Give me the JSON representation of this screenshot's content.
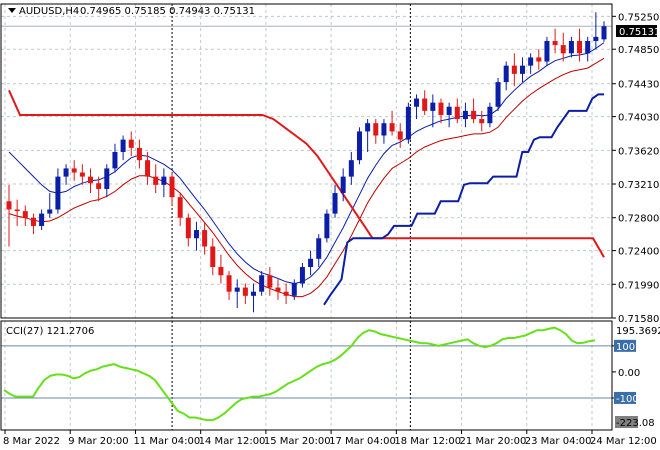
{
  "header": {
    "symbol": "AUDUSD,H4",
    "ohlc": "0.74965 0.75185 0.74943 0.75131",
    "cci_label": "CCI(27) 121.2706"
  },
  "price_tag": "0.75131",
  "cci_tags": {
    "top": "195.3692",
    "bottom": "-223.08"
  },
  "colors": {
    "bull": "#0a1ea8",
    "bear": "#e01818",
    "line_dark": "#0a1ea8",
    "line_red": "#c00000",
    "cci": "#66e01a",
    "grid": "#c0c8d0",
    "frame": "#000000"
  },
  "chart_data": [
    {
      "type": "candlestick",
      "title": "AUDUSD,H4",
      "ylim": [
        0.7158,
        0.754
      ],
      "y_ticks": [
        "0.75250",
        "0.74850",
        "0.74430",
        "0.74030",
        "0.73620",
        "0.73210",
        "0.72800",
        "0.72400",
        "0.71990",
        "0.71580"
      ],
      "x_ticks": [
        "8 Mar 2022",
        "9 Mar 20:00",
        "11 Mar 04:00",
        "14 Mar 12:00",
        "15 Mar 20:00",
        "17 Mar 04:00",
        "18 Mar 12:00",
        "21 Mar 20:00",
        "23 Mar 04:00",
        "24 Mar 12:00"
      ],
      "candles": [
        [
          0.73,
          0.732,
          0.7245,
          0.729
        ],
        [
          0.729,
          0.7302,
          0.727,
          0.7288
        ],
        [
          0.7288,
          0.7295,
          0.727,
          0.728
        ],
        [
          0.728,
          0.7285,
          0.726,
          0.727
        ],
        [
          0.727,
          0.729,
          0.7265,
          0.7285
        ],
        [
          0.7285,
          0.731,
          0.728,
          0.729
        ],
        [
          0.729,
          0.734,
          0.7285,
          0.733
        ],
        [
          0.733,
          0.7345,
          0.732,
          0.734
        ],
        [
          0.734,
          0.735,
          0.7325,
          0.7335
        ],
        [
          0.7335,
          0.7345,
          0.732,
          0.733
        ],
        [
          0.733,
          0.734,
          0.731,
          0.7322
        ],
        [
          0.7322,
          0.733,
          0.73,
          0.7315
        ],
        [
          0.7315,
          0.7345,
          0.7305,
          0.734
        ],
        [
          0.734,
          0.737,
          0.7335,
          0.736
        ],
        [
          0.736,
          0.738,
          0.735,
          0.7375
        ],
        [
          0.7375,
          0.7385,
          0.7355,
          0.7365
        ],
        [
          0.7365,
          0.7375,
          0.734,
          0.735
        ],
        [
          0.735,
          0.736,
          0.732,
          0.733
        ],
        [
          0.733,
          0.7345,
          0.731,
          0.732
        ],
        [
          0.732,
          0.734,
          0.7305,
          0.733
        ],
        [
          0.733,
          0.7335,
          0.7295,
          0.7305
        ],
        [
          0.7305,
          0.731,
          0.727,
          0.728
        ],
        [
          0.728,
          0.7285,
          0.7245,
          0.7255
        ],
        [
          0.7255,
          0.7275,
          0.724,
          0.7265
        ],
        [
          0.7265,
          0.7275,
          0.7235,
          0.7245
        ],
        [
          0.7245,
          0.7255,
          0.721,
          0.722
        ],
        [
          0.722,
          0.7235,
          0.72,
          0.721
        ],
        [
          0.721,
          0.7215,
          0.718,
          0.719
        ],
        [
          0.719,
          0.7205,
          0.717,
          0.7195
        ],
        [
          0.7195,
          0.72,
          0.7175,
          0.7185
        ],
        [
          0.7185,
          0.72,
          0.7165,
          0.719
        ],
        [
          0.719,
          0.7215,
          0.7185,
          0.721
        ],
        [
          0.721,
          0.722,
          0.7185,
          0.7195
        ],
        [
          0.7195,
          0.7205,
          0.718,
          0.719
        ],
        [
          0.719,
          0.72,
          0.7175,
          0.7185
        ],
        [
          0.7185,
          0.7205,
          0.718,
          0.72
        ],
        [
          0.72,
          0.7225,
          0.7195,
          0.722
        ],
        [
          0.722,
          0.724,
          0.721,
          0.723
        ],
        [
          0.723,
          0.726,
          0.722,
          0.7255
        ],
        [
          0.7255,
          0.729,
          0.725,
          0.7285
        ],
        [
          0.7285,
          0.732,
          0.728,
          0.731
        ],
        [
          0.731,
          0.734,
          0.73,
          0.733
        ],
        [
          0.733,
          0.736,
          0.732,
          0.735
        ],
        [
          0.735,
          0.739,
          0.7345,
          0.7385
        ],
        [
          0.7385,
          0.74,
          0.736,
          0.7395
        ],
        [
          0.7395,
          0.74,
          0.737,
          0.738
        ],
        [
          0.738,
          0.74,
          0.737,
          0.7395
        ],
        [
          0.7395,
          0.741,
          0.738,
          0.7385
        ],
        [
          0.7385,
          0.7395,
          0.7365,
          0.7375
        ],
        [
          0.7375,
          0.742,
          0.737,
          0.7415
        ],
        [
          0.7415,
          0.743,
          0.74,
          0.7425
        ],
        [
          0.7425,
          0.7435,
          0.7405,
          0.741
        ],
        [
          0.741,
          0.743,
          0.739,
          0.742
        ],
        [
          0.742,
          0.7425,
          0.7395,
          0.7405
        ],
        [
          0.7405,
          0.742,
          0.739,
          0.7415
        ],
        [
          0.7415,
          0.7425,
          0.7395,
          0.74
        ],
        [
          0.74,
          0.742,
          0.739,
          0.741
        ],
        [
          0.741,
          0.7425,
          0.7395,
          0.74
        ],
        [
          0.74,
          0.741,
          0.7385,
          0.7395
        ],
        [
          0.7395,
          0.742,
          0.739,
          0.7415
        ],
        [
          0.7415,
          0.745,
          0.741,
          0.7445
        ],
        [
          0.7445,
          0.747,
          0.7435,
          0.7465
        ],
        [
          0.7465,
          0.748,
          0.744,
          0.7455
        ],
        [
          0.7455,
          0.7475,
          0.7445,
          0.7465
        ],
        [
          0.7465,
          0.748,
          0.7455,
          0.7475
        ],
        [
          0.7475,
          0.7485,
          0.746,
          0.747
        ],
        [
          0.747,
          0.75,
          0.7465,
          0.7495
        ],
        [
          0.7495,
          0.751,
          0.748,
          0.749
        ],
        [
          0.749,
          0.7505,
          0.747,
          0.748
        ],
        [
          0.748,
          0.75,
          0.7475,
          0.7495
        ],
        [
          0.7495,
          0.751,
          0.747,
          0.748
        ],
        [
          0.748,
          0.75,
          0.747,
          0.7495
        ],
        [
          0.7495,
          0.753,
          0.7485,
          0.75
        ],
        [
          0.7497,
          0.7519,
          0.7494,
          0.7513
        ]
      ],
      "series": [
        {
          "values": [
            0.736,
            0.735,
            0.734,
            0.733,
            0.732,
            0.7312,
            0.731,
            0.7312,
            0.7318,
            0.7322,
            0.7325,
            0.7326,
            0.733,
            0.7336,
            0.7345,
            0.7353,
            0.7356,
            0.7355,
            0.735,
            0.7345,
            0.7338,
            0.7328,
            0.7315,
            0.7302,
            0.729,
            0.7276,
            0.7262,
            0.7248,
            0.7236,
            0.7226,
            0.7218,
            0.7213,
            0.721,
            0.7206,
            0.7202,
            0.72,
            0.7202,
            0.7208,
            0.7218,
            0.7232,
            0.725,
            0.7268,
            0.7288,
            0.7308,
            0.7328,
            0.7344,
            0.7358,
            0.7368,
            0.7372,
            0.7378,
            0.7385,
            0.739,
            0.7394,
            0.7398,
            0.74,
            0.7402,
            0.7404,
            0.7405,
            0.7404,
            0.7405,
            0.7412,
            0.7425,
            0.7435,
            0.7444,
            0.7452,
            0.7458,
            0.7465,
            0.7471,
            0.7474,
            0.7477,
            0.7478,
            0.748,
            0.7486,
            0.7493
          ]
        },
        {
          "values": [
            0.7285,
            0.7282,
            0.728,
            0.7277,
            0.7275,
            0.7276,
            0.728,
            0.7286,
            0.7292,
            0.7296,
            0.73,
            0.7302,
            0.7306,
            0.7312,
            0.732,
            0.7327,
            0.7331,
            0.7331,
            0.7328,
            0.7324,
            0.7318,
            0.731,
            0.7298,
            0.7286,
            0.7274,
            0.7262,
            0.7248,
            0.7234,
            0.7222,
            0.7212,
            0.7204,
            0.7198,
            0.7194,
            0.719,
            0.7187,
            0.7184,
            0.7184,
            0.7188,
            0.7196,
            0.7208,
            0.7224,
            0.724,
            0.7258,
            0.7278,
            0.7298,
            0.7314,
            0.7328,
            0.734,
            0.7346,
            0.7352,
            0.736,
            0.7366,
            0.737,
            0.7374,
            0.7376,
            0.7378,
            0.738,
            0.7382,
            0.7382,
            0.7384,
            0.739,
            0.7402,
            0.7412,
            0.7422,
            0.743,
            0.7437,
            0.7443,
            0.7449,
            0.7454,
            0.7458,
            0.746,
            0.7462,
            0.7468,
            0.7474
          ]
        },
        {
          "values": [
            0.7435,
            0.7405,
            0.7405,
            0.7405,
            0.7405,
            0.7405,
            0.7405,
            0.7405,
            0.7405,
            0.7405,
            0.7405,
            0.7405,
            0.7405,
            0.7405,
            0.7405,
            0.7405,
            0.7405,
            0.7405,
            0.7405,
            0.7405,
            0.7405,
            0.7405,
            0.7405,
            0.7405,
            0.74,
            0.739,
            0.738,
            0.737,
            0.7355,
            0.7335,
            0.7315,
            0.7295,
            0.7275,
            0.7255,
            0.7255,
            0.7255,
            0.7255,
            0.7255,
            0.7255,
            0.7255,
            0.7255,
            0.7255,
            0.7255,
            0.7255,
            0.7255,
            0.7255,
            0.7255,
            0.7255,
            0.7255,
            0.7255,
            0.7255,
            0.7255,
            0.7255,
            0.7255,
            0.7232
          ]
        },
        {
          "values": [
            null,
            null,
            null,
            null,
            null,
            null,
            null,
            null,
            null,
            null,
            null,
            null,
            null,
            null,
            null,
            null,
            null,
            null,
            null,
            null,
            null,
            null,
            null,
            null,
            null,
            null,
            null,
            null,
            null,
            null,
            null,
            null,
            null,
            null,
            null,
            null,
            null,
            null,
            null,
            null,
            null,
            null,
            null,
            null,
            null,
            null,
            null,
            null,
            null,
            null,
            null,
            null,
            null,
            null,
            0.7174,
            0.7185,
            0.7195,
            0.7205,
            0.725,
            0.7255,
            0.7255,
            0.7255,
            0.7255,
            0.7255,
            0.7255,
            0.726,
            0.727,
            0.727,
            0.727,
            0.727,
            0.7285,
            0.7285,
            0.7285,
            0.7285,
            0.73,
            0.73,
            0.73,
            0.73,
            0.732,
            0.7322,
            0.7322,
            0.7322,
            0.7322,
            0.733,
            0.733,
            0.733,
            0.733,
            0.733,
            0.736,
            0.736,
            0.7375,
            0.7378,
            0.7378,
            0.7378,
            0.739,
            0.74,
            0.741,
            0.741,
            0.741,
            0.741,
            0.7425,
            0.743,
            0.743
          ]
        }
      ]
    },
    {
      "type": "line",
      "title": "CCI(27) 121.2706",
      "ylim": [
        -223.08,
        195.3692
      ],
      "y_ticks": [
        "100",
        "0.00",
        "-100"
      ],
      "series": [
        {
          "values": [
            -70,
            -85,
            -95,
            -95,
            -95,
            -95,
            -60,
            -30,
            -15,
            -10,
            -10,
            -15,
            -25,
            -20,
            -5,
            5,
            10,
            20,
            25,
            30,
            20,
            15,
            10,
            5,
            -5,
            -15,
            -30,
            -60,
            -90,
            -120,
            -150,
            -160,
            -175,
            -175,
            -180,
            -185,
            -185,
            -175,
            -160,
            -140,
            -120,
            -105,
            -100,
            -95,
            -95,
            -90,
            -85,
            -75,
            -60,
            -45,
            -35,
            -25,
            -10,
            5,
            20,
            30,
            35,
            45,
            60,
            80,
            100,
            130,
            150,
            160,
            155,
            145,
            140,
            135,
            130,
            125,
            120,
            115,
            110,
            110,
            105,
            100,
            105,
            110,
            115,
            120,
            125,
            110,
            100,
            95,
            100,
            110,
            125,
            130,
            130,
            135,
            140,
            150,
            160,
            160,
            165,
            170,
            160,
            145,
            120,
            110,
            112,
            118,
            121
          ]
        }
      ]
    }
  ]
}
